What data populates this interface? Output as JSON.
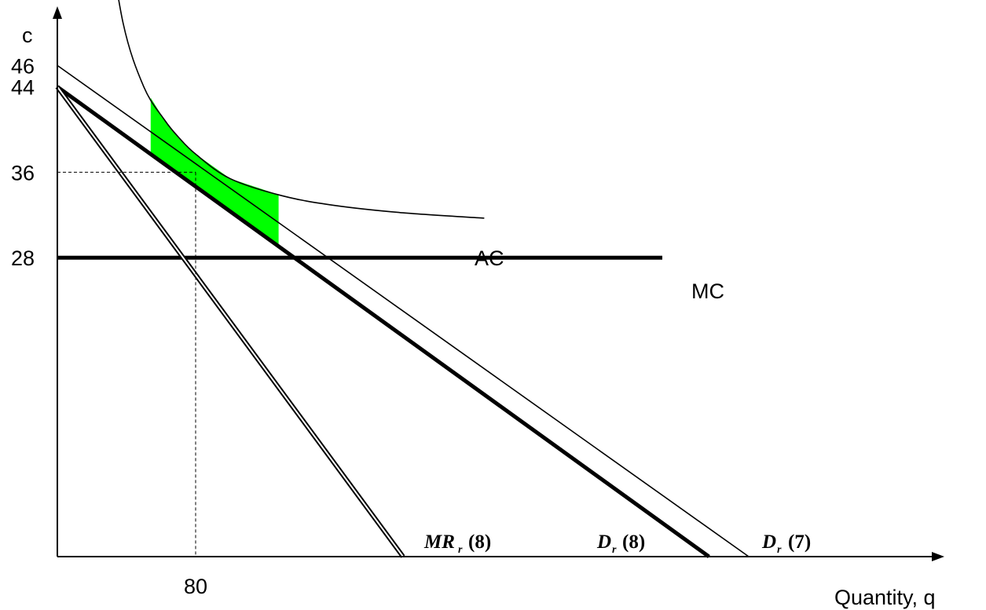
{
  "chart_data": {
    "type": "line",
    "xlabel": "Quantity, q",
    "ylabel": "c",
    "x_ticks": [
      {
        "value": 80,
        "label": "80"
      }
    ],
    "y_ticks": [
      {
        "value": 46,
        "label": "46"
      },
      {
        "value": 44,
        "label": "44"
      },
      {
        "value": 36,
        "label": "36"
      },
      {
        "value": 28,
        "label": "28"
      }
    ],
    "series": [
      {
        "name": "AC",
        "style": "thin",
        "x": [
          27,
          38,
          50,
          62,
          70,
          80,
          100,
          130,
          160,
          200,
          247
        ],
        "y": [
          61,
          50,
          44,
          40.9,
          39.3,
          37.7,
          35.4,
          33.8,
          32.9,
          32.2,
          31.7
        ]
      },
      {
        "name": "MC",
        "style": "thick",
        "x": [
          0,
          350
        ],
        "y": [
          28,
          28
        ]
      },
      {
        "name": "D (7)",
        "style": "thin",
        "x": [
          0,
          400
        ],
        "y": [
          46,
          0
        ]
      },
      {
        "name": "D (8)",
        "style": "thick",
        "x": [
          0,
          377
        ],
        "y": [
          44,
          0
        ]
      },
      {
        "name": "MR (8)",
        "style": "double",
        "x": [
          0,
          200
        ],
        "y": [
          44,
          0
        ]
      }
    ],
    "curve_labels": [
      {
        "main": "AC",
        "sub": "",
        "tail": ""
      },
      {
        "main": "MC",
        "sub": "",
        "tail": ""
      },
      {
        "main": "MR",
        "sub": "r",
        "tail": "(8)"
      },
      {
        "main": "D",
        "sub": "r",
        "tail": "(8)"
      },
      {
        "main": "D",
        "sub": "r",
        "tail": "(7)"
      }
    ],
    "reference_lines": [
      {
        "x": 80,
        "y": 36,
        "style": "dashed"
      }
    ],
    "shaded_region": {
      "between": [
        "D (7)",
        "AC"
      ],
      "x_range": [
        54,
        128
      ],
      "color": "#00ff00"
    },
    "xlim": [
      0,
      505
    ],
    "ylim": [
      0,
      50
    ],
    "grid": false,
    "legend": "none"
  }
}
